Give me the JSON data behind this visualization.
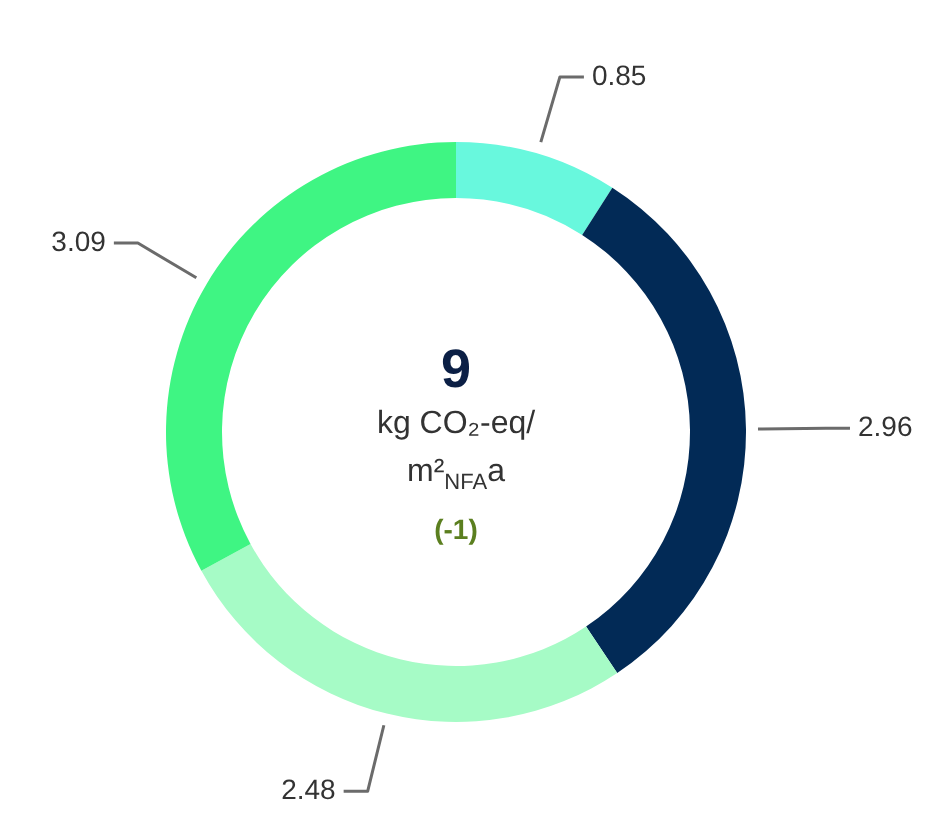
{
  "chart_data": {
    "type": "donut",
    "categories": [
      null,
      null,
      null,
      null
    ],
    "values": [
      0.85,
      2.96,
      2.48,
      3.09
    ],
    "colors": [
      "#68f8dd",
      "#022a56",
      "#a6fbc6",
      "#3ff583"
    ],
    "data_labels": true,
    "title": "9",
    "subtitle": "kg CO₂-eq/ m²$_{NFA}$a",
    "annotations": [
      "(-1)"
    ]
  }
}
